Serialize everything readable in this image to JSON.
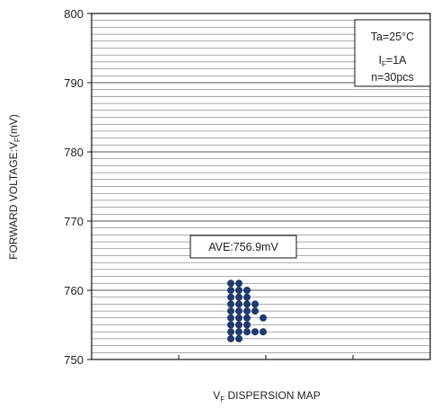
{
  "chart_data": {
    "type": "scatter",
    "title": "",
    "xlabel_main": "V",
    "xlabel_sub": "F",
    "xlabel_rest": " DISPERSION MAP",
    "ylabel_main": "FORWARD VOLTAGE:V",
    "ylabel_sub": "F",
    "ylabel_rest": "(mV)",
    "ylim": [
      750,
      800
    ],
    "yticks": [
      750,
      760,
      770,
      780,
      790,
      800
    ],
    "y_tick_labels": [
      "750",
      "760",
      "770",
      "780",
      "790",
      "800"
    ],
    "grid": true,
    "condition_box": {
      "line1": "Ta=25°C",
      "line2_main": "I",
      "line2_sub": "F",
      "line2_rest": "=1A",
      "line3": "n=30pcs"
    },
    "average_label": "AVE:756.9mV",
    "point_color": "#1f3a6e",
    "columns": [
      {
        "column": 0,
        "y": [
          753,
          754,
          755,
          756,
          757,
          758,
          759,
          760,
          761
        ]
      },
      {
        "column": 1,
        "y": [
          753,
          754,
          755,
          756,
          757,
          758,
          759,
          760,
          761
        ]
      },
      {
        "column": 2,
        "y": [
          754,
          755,
          756,
          757,
          758,
          759,
          760
        ]
      },
      {
        "column": 3,
        "y": [
          754,
          757,
          758
        ]
      },
      {
        "column": 4,
        "y": [
          754,
          756
        ]
      }
    ]
  }
}
